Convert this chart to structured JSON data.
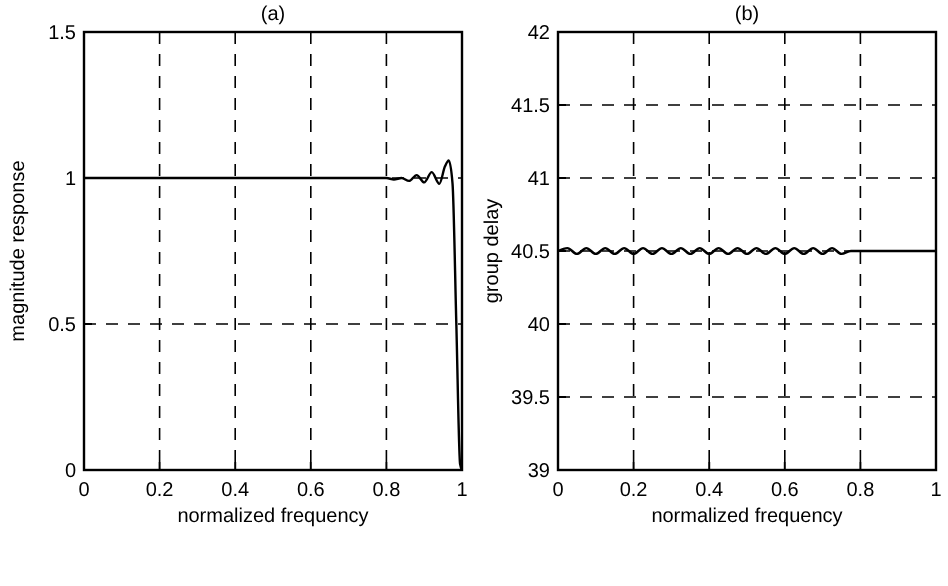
{
  "chart_data": [
    {
      "type": "line",
      "title": "(a)",
      "xlabel": "normalized frequency",
      "ylabel": "magnitude response",
      "xlim": [
        0,
        1
      ],
      "ylim": [
        0,
        1.5
      ],
      "xticks": [
        0,
        0.2,
        0.4,
        0.6,
        0.8,
        1
      ],
      "yticks": [
        0,
        0.5,
        1,
        1.5
      ],
      "grid": true,
      "series": [
        {
          "color": "#000000",
          "x": [
            0,
            0.1,
            0.2,
            0.3,
            0.4,
            0.5,
            0.6,
            0.7,
            0.8,
            0.82,
            0.84,
            0.86,
            0.88,
            0.9,
            0.92,
            0.94,
            0.955,
            0.965,
            0.975,
            0.985,
            0.995,
            1
          ],
          "values": [
            1,
            1,
            1,
            1,
            1,
            1,
            1,
            1,
            1,
            0.995,
            1,
            0.99,
            1.01,
            0.985,
            1.02,
            0.98,
            1.04,
            1.06,
            0.98,
            0.5,
            0.02,
            0
          ]
        }
      ]
    },
    {
      "type": "line",
      "title": "(b)",
      "xlabel": "normalized frequency",
      "ylabel": "group delay",
      "xlim": [
        0,
        1
      ],
      "ylim": [
        39,
        42
      ],
      "xticks": [
        0,
        0.2,
        0.4,
        0.6,
        0.8,
        1
      ],
      "yticks": [
        39,
        39.5,
        40,
        40.5,
        41,
        41.5,
        42
      ],
      "grid": true,
      "series": [
        {
          "color": "#000000",
          "x": [
            0,
            0.025,
            0.05,
            0.075,
            0.1,
            0.125,
            0.15,
            0.175,
            0.2,
            0.225,
            0.25,
            0.275,
            0.3,
            0.325,
            0.35,
            0.375,
            0.4,
            0.425,
            0.45,
            0.475,
            0.5,
            0.525,
            0.55,
            0.575,
            0.6,
            0.625,
            0.65,
            0.675,
            0.7,
            0.725,
            0.75,
            0.775,
            0.8,
            1
          ],
          "values": [
            40.5,
            40.52,
            40.48,
            40.52,
            40.48,
            40.52,
            40.48,
            40.52,
            40.48,
            40.52,
            40.48,
            40.52,
            40.48,
            40.52,
            40.48,
            40.52,
            40.48,
            40.52,
            40.48,
            40.52,
            40.48,
            40.52,
            40.48,
            40.52,
            40.48,
            40.52,
            40.48,
            40.52,
            40.48,
            40.52,
            40.48,
            40.5,
            40.5,
            40.5
          ]
        }
      ]
    }
  ]
}
